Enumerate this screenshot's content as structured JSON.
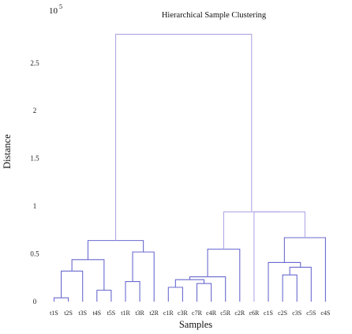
{
  "chart_data": {
    "type": "dendrogram",
    "title": "Hierarchical Sample Clustering",
    "xlabel": "Samples",
    "ylabel": "Distance",
    "y_multiplier": {
      "base": "10",
      "exponent": "5"
    },
    "ylim": [
      0,
      2.9
    ],
    "y_ticks": [
      {
        "value": 0,
        "label": "0"
      },
      {
        "value": 0.5,
        "label": "0.5"
      },
      {
        "value": 1,
        "label": "1"
      },
      {
        "value": 1.5,
        "label": "1.5"
      },
      {
        "value": 2,
        "label": "2"
      },
      {
        "value": 2.5,
        "label": "2.5"
      }
    ],
    "leaves": [
      "t1S",
      "t2S",
      "t3S",
      "t4S",
      "t5S",
      "t1R",
      "t3R",
      "t2R",
      "c1R",
      "c3R",
      "c7R",
      "c4R",
      "c5R",
      "c2R",
      "c6R",
      "c1S",
      "c2S",
      "c3S",
      "c5S",
      "c4S"
    ],
    "merges": [
      {
        "id": "m1",
        "left": "t1S",
        "right": "t2S",
        "height": 0.04,
        "color": "#6a6ad0"
      },
      {
        "id": "m2",
        "left": "m1",
        "right": "t3S",
        "height": 0.32,
        "color": "#6a6ad0"
      },
      {
        "id": "m3",
        "left": "t4S",
        "right": "t5S",
        "height": 0.12,
        "color": "#6a6ad0"
      },
      {
        "id": "m4",
        "left": "m2",
        "right": "m3",
        "height": 0.44,
        "color": "#6a6ad0"
      },
      {
        "id": "m5",
        "left": "t1R",
        "right": "t3R",
        "height": 0.21,
        "color": "#6a6ad0"
      },
      {
        "id": "m6",
        "left": "m5",
        "right": "t2R",
        "height": 0.52,
        "color": "#6a6ad0"
      },
      {
        "id": "m7",
        "left": "m4",
        "right": "m6",
        "height": 0.64,
        "color": "#6a6ad0"
      },
      {
        "id": "m8",
        "left": "c1R",
        "right": "c3R",
        "height": 0.15,
        "color": "#6a6ad0"
      },
      {
        "id": "m9",
        "left": "c7R",
        "right": "c4R",
        "height": 0.19,
        "color": "#6a6ad0"
      },
      {
        "id": "m10",
        "left": "m8",
        "right": "m9",
        "height": 0.23,
        "color": "#6a6ad0"
      },
      {
        "id": "m11",
        "left": "m10",
        "right": "c5R",
        "height": 0.26,
        "color": "#6a6ad0"
      },
      {
        "id": "m12",
        "left": "m11",
        "right": "c2R",
        "height": 0.55,
        "color": "#6a6ad0"
      },
      {
        "id": "m13",
        "left": "c2S",
        "right": "c3S",
        "height": 0.28,
        "color": "#6a6ad0"
      },
      {
        "id": "m14",
        "left": "m13",
        "right": "c5S",
        "height": 0.36,
        "color": "#6a6ad0"
      },
      {
        "id": "m15",
        "left": "c1S",
        "right": "m14",
        "height": 0.41,
        "color": "#6a6ad0"
      },
      {
        "id": "m16",
        "left": "m15",
        "right": "c4S",
        "height": 0.67,
        "color": "#6a6ad0"
      },
      {
        "id": "m17",
        "left": "c6R",
        "right": "m16",
        "height": 0.94,
        "color": "#b0a8e6"
      },
      {
        "id": "m18",
        "left": "m12",
        "right": "m17",
        "height": 0.94,
        "color": "#b0a8e6"
      },
      {
        "id": "m19",
        "left": "m7",
        "right": "m18",
        "height": 2.8,
        "color": "#b0a8e6"
      }
    ],
    "grid": false,
    "legend": "none"
  }
}
